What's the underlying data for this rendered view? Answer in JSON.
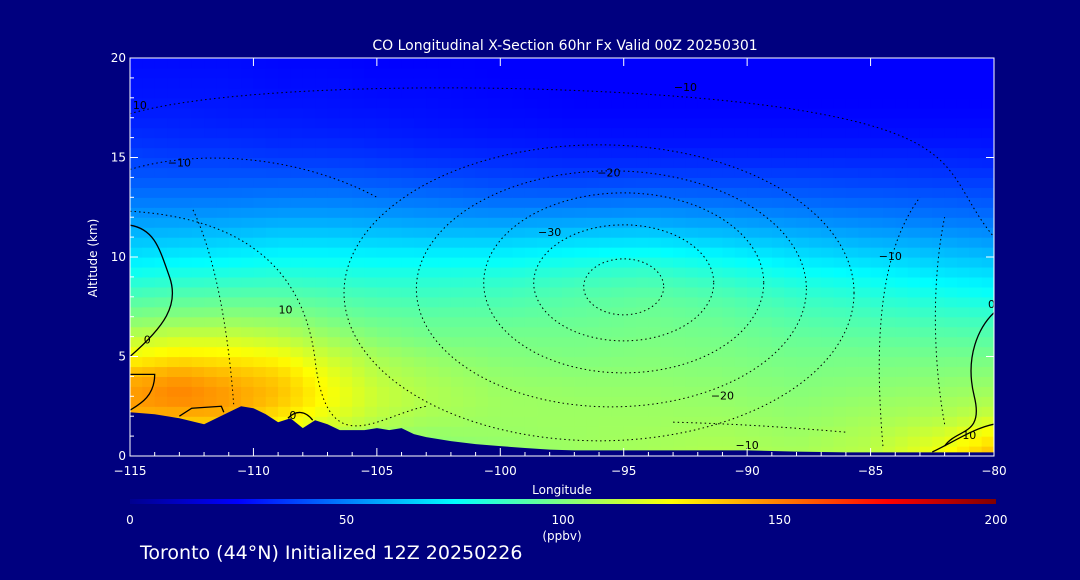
{
  "chart_data": {
    "type": "heatmap",
    "title": "CO Longitudinal X-Section 60hr  Fx Valid 00Z 20250301",
    "xlabel": "Longitude",
    "ylabel": "Altitude (km)",
    "xlim": [
      -115,
      -80
    ],
    "ylim": [
      0,
      20
    ],
    "x_ticks": [
      -115,
      -110,
      -105,
      -100,
      -95,
      -90,
      -85,
      -80
    ],
    "x_tick_labels": [
      "−115",
      "−110",
      "−105",
      "−100",
      "−95",
      "−90",
      "−85",
      "−80"
    ],
    "y_ticks": [
      0,
      5,
      10,
      15,
      20
    ],
    "y_tick_labels": [
      "0",
      "5",
      "10",
      "15",
      "20"
    ],
    "colorbar": {
      "ticks": [
        0,
        50,
        100,
        150,
        200
      ],
      "tick_labels": [
        "0",
        "50",
        "100",
        "150",
        "200"
      ],
      "units": "(ppbv)",
      "range": [
        0,
        200
      ]
    },
    "field_columns": [
      {
        "lon": -115,
        "co": [
          110,
          125,
          140,
          145,
          140,
          125,
          112,
          100,
          90,
          80,
          70,
          62,
          55,
          48,
          42,
          38,
          34,
          31,
          29,
          28,
          27
        ]
      },
      {
        "lon": -113,
        "co": [
          115,
          125,
          140,
          150,
          145,
          130,
          115,
          102,
          92,
          82,
          72,
          63,
          55,
          48,
          42,
          37,
          33,
          31,
          29,
          28,
          27
        ]
      },
      {
        "lon": -111,
        "co": [
          115,
          125,
          140,
          145,
          140,
          128,
          115,
          103,
          93,
          83,
          73,
          64,
          56,
          48,
          42,
          37,
          33,
          30,
          29,
          28,
          27
        ]
      },
      {
        "lon": -109,
        "co": [
          110,
          120,
          130,
          138,
          135,
          125,
          112,
          102,
          93,
          84,
          75,
          66,
          57,
          49,
          42,
          36,
          32,
          30,
          28,
          27,
          26
        ]
      },
      {
        "lon": -107,
        "co": [
          105,
          112,
          120,
          125,
          122,
          115,
          106,
          98,
          91,
          83,
          75,
          66,
          57,
          49,
          42,
          36,
          32,
          29,
          28,
          27,
          26
        ]
      },
      {
        "lon": -105,
        "co": [
          100,
          106,
          112,
          115,
          112,
          108,
          101,
          95,
          89,
          82,
          74,
          65,
          56,
          48,
          41,
          35,
          31,
          29,
          27,
          26,
          25
        ]
      },
      {
        "lon": -103,
        "co": [
          100,
          104,
          108,
          110,
          108,
          104,
          98,
          94,
          88,
          82,
          74,
          64,
          55,
          47,
          40,
          34,
          30,
          28,
          27,
          26,
          25
        ]
      },
      {
        "lon": -100,
        "co": [
          103,
          105,
          106,
          106,
          104,
          101,
          98,
          94,
          89,
          83,
          74,
          64,
          54,
          45,
          38,
          33,
          29,
          27,
          26,
          25,
          25
        ]
      },
      {
        "lon": -97,
        "co": [
          106,
          106,
          106,
          105,
          103,
          100,
          98,
          95,
          92,
          86,
          77,
          66,
          55,
          45,
          37,
          32,
          28,
          26,
          25,
          25,
          25
        ]
      },
      {
        "lon": -94,
        "co": [
          108,
          107,
          106,
          105,
          103,
          101,
          99,
          97,
          94,
          88,
          79,
          67,
          56,
          46,
          38,
          32,
          28,
          26,
          25,
          25,
          25
        ]
      },
      {
        "lon": -91,
        "co": [
          110,
          108,
          106,
          104,
          102,
          100,
          98,
          95,
          91,
          84,
          75,
          64,
          54,
          45,
          38,
          32,
          28,
          26,
          25,
          25,
          25
        ]
      },
      {
        "lon": -88,
        "co": [
          108,
          106,
          104,
          102,
          100,
          98,
          95,
          91,
          86,
          79,
          70,
          61,
          52,
          44,
          38,
          32,
          28,
          26,
          25,
          25,
          25
        ]
      },
      {
        "lon": -85,
        "co": [
          112,
          110,
          107,
          104,
          101,
          98,
          94,
          89,
          83,
          76,
          67,
          58,
          50,
          43,
          37,
          32,
          28,
          26,
          25,
          25,
          25
        ]
      },
      {
        "lon": -82,
        "co": [
          125,
          118,
          110,
          106,
          102,
          98,
          93,
          87,
          80,
          72,
          64,
          56,
          48,
          42,
          36,
          32,
          28,
          26,
          25,
          25,
          25
        ]
      },
      {
        "lon": -80,
        "co": [
          140,
          128,
          115,
          108,
          103,
          98,
          92,
          86,
          78,
          70,
          62,
          54,
          47,
          41,
          36,
          31,
          28,
          26,
          25,
          25,
          25
        ]
      }
    ],
    "terrain": {
      "lon": [
        -115,
        -114,
        -113,
        -112,
        -111.5,
        -111,
        -110.5,
        -110,
        -109.5,
        -109,
        -108.5,
        -108,
        -107.5,
        -107,
        -106.5,
        -106,
        -105.5,
        -105,
        -104.5,
        -104,
        -103.5,
        -103,
        -102.5,
        -102,
        -101,
        -100,
        -99,
        -98,
        -97,
        -96,
        -95,
        -94,
        -93,
        -92,
        -91,
        -90,
        -89,
        -88,
        -87,
        -86,
        -85,
        -84,
        -83,
        -82,
        -81,
        -80
      ],
      "altitude_km": [
        2.2,
        2.1,
        1.9,
        1.6,
        1.9,
        2.2,
        2.5,
        2.4,
        2.1,
        1.7,
        1.9,
        1.4,
        1.8,
        1.6,
        1.3,
        1.3,
        1.3,
        1.4,
        1.3,
        1.4,
        1.1,
        0.95,
        0.85,
        0.75,
        0.6,
        0.5,
        0.4,
        0.32,
        0.28,
        0.28,
        0.28,
        0.28,
        0.28,
        0.28,
        0.28,
        0.28,
        0.25,
        0.22,
        0.2,
        0.18,
        0.18,
        0.18,
        0.18,
        0.18,
        0.18,
        0.18
      ]
    },
    "contour_labels": [
      {
        "text": "10",
        "lon": -114.6,
        "alt": 17.6
      },
      {
        "text": "−10",
        "lon": -113.0,
        "alt": 14.7
      },
      {
        "text": "10",
        "lon": -108.7,
        "alt": 7.3
      },
      {
        "text": "0",
        "lon": -114.3,
        "alt": 5.8
      },
      {
        "text": "0",
        "lon": -108.4,
        "alt": 2.0
      },
      {
        "text": "−10",
        "lon": -92.5,
        "alt": 18.5
      },
      {
        "text": "−20",
        "lon": -95.6,
        "alt": 14.2
      },
      {
        "text": "−30",
        "lon": -98.0,
        "alt": 11.2
      },
      {
        "text": "−10",
        "lon": -84.2,
        "alt": 10.0
      },
      {
        "text": "−20",
        "lon": -91.0,
        "alt": 3.0
      },
      {
        "text": "−10",
        "lon": -90.0,
        "alt": 0.5
      },
      {
        "text": "10",
        "lon": -81.0,
        "alt": 1.0
      },
      {
        "text": "0",
        "lon": -80.1,
        "alt": 7.6
      }
    ]
  },
  "footer": {
    "text": "Toronto (44°N) Initialized 12Z 20250226"
  }
}
